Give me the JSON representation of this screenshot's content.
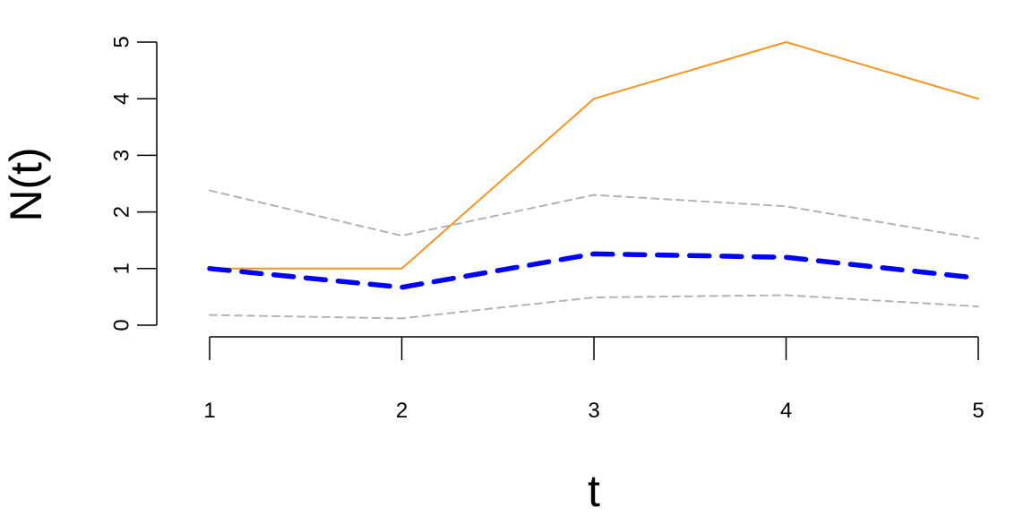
{
  "chart_data": {
    "type": "line",
    "xlabel": "t",
    "ylabel": "N(t)",
    "x": [
      1,
      2,
      3,
      4,
      5
    ],
    "xlim": [
      1,
      5
    ],
    "ylim": [
      0,
      5
    ],
    "x_ticks": [
      1,
      2,
      3,
      4,
      5
    ],
    "y_ticks": [
      0,
      1,
      2,
      3,
      4,
      5
    ],
    "grid": false,
    "legend": "none",
    "series": [
      {
        "values": [
          1,
          1,
          4,
          5,
          4
        ],
        "color": "#f7931e",
        "style": "solid"
      },
      {
        "values": [
          2.38,
          1.58,
          2.3,
          2.1,
          1.53
        ],
        "color": "#b3b3b3",
        "style": "dashed"
      },
      {
        "values": [
          0.18,
          0.12,
          0.49,
          0.53,
          0.33
        ],
        "color": "#b3b3b3",
        "style": "dashed"
      },
      {
        "values": [
          1.0,
          0.67,
          1.26,
          1.2,
          0.83
        ],
        "color": "#0000ff",
        "style": "dashed-thick"
      }
    ]
  }
}
